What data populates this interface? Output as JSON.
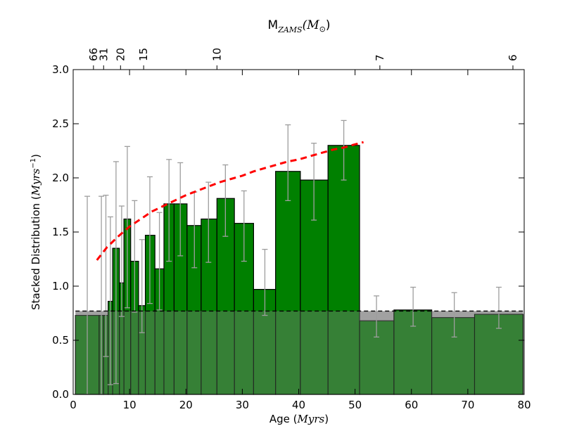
{
  "chart_data": {
    "type": "bar",
    "xlabel_text": "Age (",
    "xlabel_math": "Myrs",
    "xlabel_close": ")",
    "ylabel_text": "Stacked Distribution (",
    "ylabel_math": "Myrs",
    "ylabel_exp": "−1",
    "ylabel_close": ")",
    "top_label_main": "M",
    "top_label_sub": "ZAMS",
    "top_label_paren": "(M",
    "top_label_sun": "⊙",
    "top_label_close": ")",
    "xlim": [
      0,
      80
    ],
    "ylim": [
      0.0,
      3.0
    ],
    "x_ticks": [
      0,
      10,
      20,
      30,
      40,
      50,
      60,
      70,
      80
    ],
    "y_ticks": [
      "0.0",
      "0.5",
      "1.0",
      "1.5",
      "2.0",
      "2.5",
      "3.0"
    ],
    "top_ticks": [
      {
        "label": "66",
        "age": 3.6
      },
      {
        "label": "31",
        "age": 5.4
      },
      {
        "label": "20",
        "age": 8.4
      },
      {
        "label": "15",
        "age": 12.5
      },
      {
        "label": "10",
        "age": 25.5
      },
      {
        "label": "7",
        "age": 54.4
      },
      {
        "label": "6",
        "age": 78.0
      }
    ],
    "baseline_level": 0.77,
    "green_bins": [
      {
        "x0": 6.2,
        "x1": 7.0,
        "value": 0.86,
        "err_x": 6.6,
        "err_low": 0.09,
        "err_high": 1.64
      },
      {
        "x0": 7.0,
        "x1": 8.2,
        "value": 1.35,
        "err_x": 7.6,
        "err_low": 0.1,
        "err_high": 2.15
      },
      {
        "x0": 8.2,
        "x1": 9.0,
        "value": 1.03,
        "err_x": 8.6,
        "err_low": 0.72,
        "err_high": 1.74
      },
      {
        "x0": 9.0,
        "x1": 10.2,
        "value": 1.62,
        "err_x": 9.6,
        "err_low": 0.8,
        "err_high": 2.29
      },
      {
        "x0": 10.2,
        "x1": 11.6,
        "value": 1.23,
        "err_x": 10.9,
        "err_low": 0.76,
        "err_high": 1.79
      },
      {
        "x0": 11.6,
        "x1": 12.8,
        "value": 0.82,
        "err_x": 12.2,
        "err_low": 0.57,
        "err_high": 1.43
      },
      {
        "x0": 12.8,
        "x1": 14.5,
        "value": 1.47,
        "err_x": 13.6,
        "err_low": 0.84,
        "err_high": 2.01
      },
      {
        "x0": 14.5,
        "x1": 16.1,
        "value": 1.16,
        "err_x": 15.3,
        "err_low": 0.78,
        "err_high": 1.68
      },
      {
        "x0": 16.1,
        "x1": 17.9,
        "value": 1.76,
        "err_x": 17.0,
        "err_low": 1.23,
        "err_high": 2.17
      },
      {
        "x0": 17.9,
        "x1": 20.2,
        "value": 1.76,
        "err_x": 19.0,
        "err_low": 1.28,
        "err_high": 2.14
      },
      {
        "x0": 20.2,
        "x1": 22.7,
        "value": 1.56,
        "err_x": 21.5,
        "err_low": 1.17,
        "err_high": 1.87
      },
      {
        "x0": 22.7,
        "x1": 25.5,
        "value": 1.62,
        "err_x": 24.0,
        "err_low": 1.22,
        "err_high": 1.96
      },
      {
        "x0": 25.5,
        "x1": 28.6,
        "value": 1.81,
        "err_x": 27.0,
        "err_low": 1.46,
        "err_high": 2.12
      },
      {
        "x0": 28.6,
        "x1": 32.0,
        "value": 1.58,
        "err_x": 30.3,
        "err_low": 1.23,
        "err_high": 1.88
      },
      {
        "x0": 32.0,
        "x1": 35.9,
        "value": 0.97,
        "err_x": 34.0,
        "err_low": 0.73,
        "err_high": 1.34
      },
      {
        "x0": 35.9,
        "x1": 40.3,
        "value": 2.06,
        "err_x": 38.1,
        "err_low": 1.79,
        "err_high": 2.49
      },
      {
        "x0": 40.3,
        "x1": 45.2,
        "value": 1.98,
        "err_x": 42.7,
        "err_low": 1.61,
        "err_high": 2.32
      },
      {
        "x0": 45.2,
        "x1": 50.8,
        "value": 2.3,
        "err_x": 48.0,
        "err_low": 1.98,
        "err_high": 2.53
      }
    ],
    "baseline_bins": [
      {
        "x0": 0.4,
        "x1": 4.6,
        "value": 0.73,
        "err_x": 2.5,
        "err_low": 0.0,
        "err_high": 1.83
      },
      {
        "x0": 4.6,
        "x1": 5.4,
        "value": 0.73,
        "err_x": 5.0,
        "err_low": 0.0,
        "err_high": 1.83
      },
      {
        "x0": 5.4,
        "x1": 6.2,
        "value": 0.73,
        "err_x": 5.8,
        "err_low": 0.35,
        "err_high": 1.84
      },
      {
        "x0": 50.8,
        "x1": 56.9,
        "value": 0.68,
        "err_x": 53.8,
        "err_low": 0.53,
        "err_high": 0.91
      },
      {
        "x0": 56.9,
        "x1": 63.6,
        "value": 0.78,
        "err_x": 60.3,
        "err_low": 0.63,
        "err_high": 0.99
      },
      {
        "x0": 63.6,
        "x1": 71.2,
        "value": 0.71,
        "err_x": 67.6,
        "err_low": 0.53,
        "err_high": 0.94
      },
      {
        "x0": 71.2,
        "x1": 79.8,
        "value": 0.74,
        "err_x": 75.5,
        "err_low": 0.61,
        "err_high": 0.99
      }
    ],
    "fit_curve": {
      "x": [
        4.2,
        6,
        8,
        10,
        12,
        14,
        16,
        18,
        20,
        22,
        24,
        26,
        28,
        30,
        32,
        34,
        36,
        38,
        40,
        42,
        44,
        46,
        48,
        50,
        51.5
      ],
      "y": [
        1.24,
        1.36,
        1.46,
        1.55,
        1.62,
        1.69,
        1.74,
        1.79,
        1.84,
        1.88,
        1.92,
        1.96,
        1.99,
        2.02,
        2.06,
        2.09,
        2.12,
        2.15,
        2.17,
        2.2,
        2.23,
        2.26,
        2.28,
        2.31,
        2.33
      ]
    },
    "colors": {
      "green": "#008000",
      "baseline_fill": "#b8b8b8",
      "baseline_overlay": "#3a7a3a",
      "error_bar": "#9e9e9e",
      "fit": "#ff0000",
      "baseline_line": "#000000"
    }
  }
}
